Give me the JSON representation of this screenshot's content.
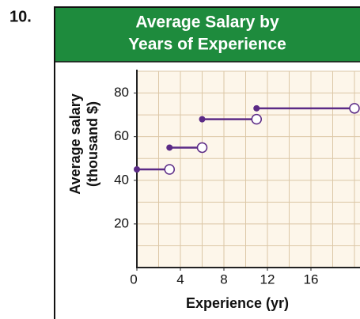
{
  "chart_data": {
    "type": "step",
    "problem_number": "10.",
    "title": [
      "Average Salary by",
      "Years of Experience"
    ],
    "xlabel": "Experience (yr)",
    "ylabel": [
      "Average salary",
      "(thousand $)"
    ],
    "x": [
      0,
      3,
      6,
      11
    ],
    "x_end": [
      3,
      6,
      11,
      20
    ],
    "values": [
      45,
      55,
      68,
      73
    ],
    "color": "#5b2a86",
    "header_color": "#1e8b3d",
    "grid_color": "#dcc7a6",
    "plot_background": "#fdf6ea",
    "xlim": [
      0,
      20
    ],
    "ylim": [
      0,
      90
    ],
    "xticks": [
      0,
      4,
      8,
      12,
      16
    ],
    "yticks": [
      20,
      40,
      60,
      80
    ],
    "grid": true
  }
}
